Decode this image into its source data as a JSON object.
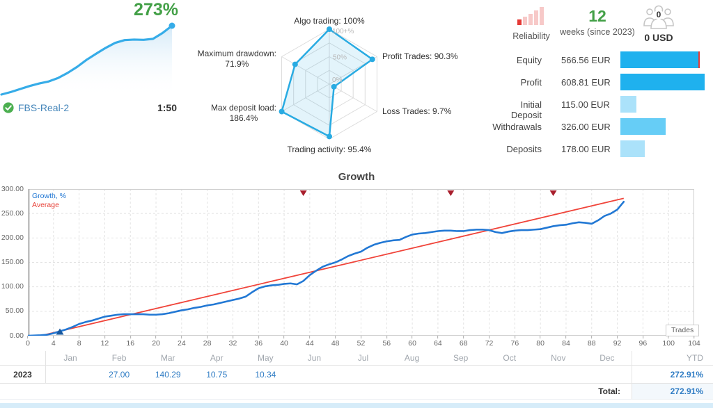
{
  "account": {
    "growth_badge": "273%",
    "name": "FBS-Real-2",
    "leverage": "1:50"
  },
  "header_stats": {
    "reliability_label": "Reliability",
    "weeks_value": "12",
    "weeks_caption": "weeks (since 2023)",
    "subscribers_count": "0",
    "subscribers_funds": "0 USD"
  },
  "balance": {
    "currency": "EUR",
    "max_amount": 608.81,
    "bar_colors": {
      "strong": "#1fb1ee",
      "medium": "#66cdf6",
      "light": "#abe2fa"
    },
    "rows": [
      {
        "label": "Equity",
        "value": "566.56 EUR",
        "amount": 566.56,
        "tone": "strong",
        "end_marker": true
      },
      {
        "label": "Profit",
        "value": "608.81 EUR",
        "amount": 608.81,
        "tone": "strong",
        "end_marker": false
      },
      {
        "label": "Initial Deposit",
        "value": "115.00 EUR",
        "amount": 115.0,
        "tone": "light",
        "end_marker": false
      },
      {
        "label": "Withdrawals",
        "value": "326.00 EUR",
        "amount": 326.0,
        "tone": "medium",
        "end_marker": false
      },
      {
        "label": "Deposits",
        "value": "178.00 EUR",
        "amount": 178.0,
        "tone": "light",
        "end_marker": false
      }
    ]
  },
  "chart_data": [
    {
      "type": "area",
      "name": "account-growth-sparkline",
      "color": "#36ace8",
      "ylim": [
        0,
        273
      ],
      "x": [
        0,
        1,
        2,
        3,
        4,
        5,
        6,
        7,
        8,
        9,
        10,
        11,
        12,
        13,
        14,
        15,
        16,
        17,
        18
      ],
      "y": [
        0,
        10,
        22,
        34,
        44,
        52,
        66,
        86,
        110,
        138,
        162,
        185,
        205,
        216,
        218,
        217,
        221,
        244,
        273
      ],
      "end_value_label": "273%"
    },
    {
      "type": "radar",
      "name": "trading-statistics-radar",
      "max": 100,
      "ring_labels": [
        "100+%",
        "50%",
        "0%"
      ],
      "axes": [
        {
          "text": "Algo trading: 100%",
          "value": 100
        },
        {
          "text": "Profit Trades: 90.3%",
          "value": 90.3
        },
        {
          "text": "Loss Trades: 9.7%",
          "value": 9.7
        },
        {
          "text": "Trading activity: 95.4%",
          "value": 95.4
        },
        {
          "text": "Max deposit load:",
          "value_text": "186.4%",
          "value": 186.4
        },
        {
          "text": "Maximum drawdown:",
          "value_text": "71.9%",
          "value": 71.9
        }
      ]
    },
    {
      "type": "line",
      "title": "Growth",
      "xlabel": "Trades",
      "xlim": [
        0,
        104
      ],
      "ylim": [
        0,
        300
      ],
      "xtick_step": 4,
      "yticks": [
        0,
        50,
        100,
        150,
        200,
        250,
        300
      ],
      "legend": [
        "Growth, %",
        "Average"
      ],
      "series": [
        {
          "name": "Growth, %",
          "color": "#2278d4",
          "x": [
            0,
            2,
            3,
            4,
            5,
            6,
            7,
            8,
            9,
            10,
            11,
            12,
            13,
            14,
            15,
            16,
            17,
            18,
            19,
            20,
            21,
            22,
            23,
            24,
            25,
            26,
            27,
            28,
            29,
            30,
            31,
            32,
            33,
            34,
            35,
            36,
            37,
            38,
            39,
            40,
            41,
            42,
            43,
            44,
            45,
            46,
            47,
            48,
            49,
            50,
            51,
            52,
            53,
            54,
            55,
            56,
            57,
            58,
            59,
            60,
            61,
            62,
            63,
            64,
            65,
            66,
            67,
            68,
            69,
            70,
            71,
            72,
            73,
            74,
            75,
            76,
            77,
            78,
            79,
            80,
            81,
            82,
            83,
            84,
            85,
            86,
            87,
            88,
            89,
            90,
            91,
            92,
            93
          ],
          "y": [
            0,
            1,
            2,
            5,
            9,
            13,
            18,
            24,
            28,
            31,
            35,
            39,
            41,
            43,
            44,
            44,
            44,
            44,
            43,
            43,
            44,
            46,
            49,
            52,
            54,
            57,
            59,
            62,
            64,
            67,
            70,
            73,
            76,
            80,
            89,
            97,
            101,
            103,
            104,
            106,
            107,
            105,
            112,
            124,
            133,
            141,
            146,
            150,
            156,
            163,
            168,
            172,
            180,
            186,
            190,
            193,
            195,
            196,
            202,
            207,
            209,
            210,
            212,
            214,
            215,
            215,
            214,
            214,
            216,
            217,
            217,
            216,
            212,
            210,
            213,
            215,
            216,
            216,
            217,
            218,
            221,
            224,
            226,
            227,
            230,
            232,
            231,
            229,
            236,
            245,
            250,
            258,
            274
          ]
        },
        {
          "name": "Average",
          "color": "#f0443a",
          "x": [
            2,
            93
          ],
          "y": [
            0,
            281
          ]
        }
      ],
      "top_markers_x": [
        43,
        66,
        82
      ],
      "bottom_markers_x": [
        5
      ]
    }
  ],
  "growth_table": {
    "months": [
      "Jan",
      "Feb",
      "Mar",
      "Apr",
      "May",
      "Jun",
      "Jul",
      "Aug",
      "Sep",
      "Oct",
      "Nov",
      "Dec"
    ],
    "ytd_label": "YTD",
    "rows": [
      {
        "year": "2023",
        "values": [
          "",
          "27.00",
          "140.29",
          "10.75",
          "10.34",
          "",
          "",
          "",
          "",
          "",
          "",
          ""
        ],
        "ytd": "272.91%"
      }
    ],
    "total_label": "Total:",
    "total_value": "272.91%"
  }
}
